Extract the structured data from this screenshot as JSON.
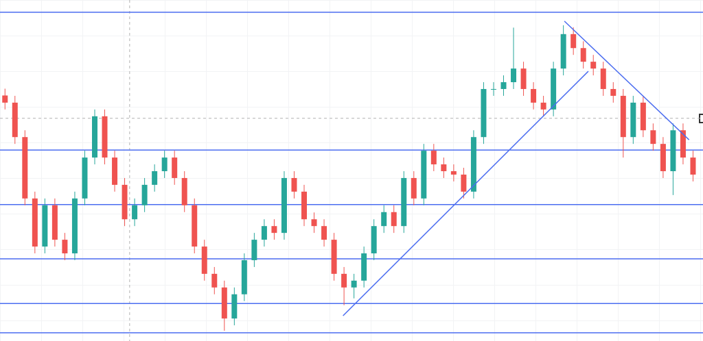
{
  "chart_data": {
    "type": "candlestick",
    "open": [
      72.0,
      69.9,
      59.8,
      41.8,
      27.7,
      39.8,
      29.7,
      25.7,
      41.8,
      53.8,
      65.9,
      53.8,
      45.8,
      35.7,
      39.8,
      45.8,
      49.8,
      53.8,
      47.8,
      39.8,
      27.7,
      19.7,
      15.7,
      6.6,
      13.7,
      23.7,
      29.7,
      33.7,
      31.7,
      47.8,
      43.8,
      35.7,
      33.7,
      29.7,
      19.7,
      15.7,
      17.7,
      25.7,
      33.7,
      37.8,
      33.7,
      47.8,
      41.8,
      55.8,
      51.8,
      49.8,
      48.8,
      43.8,
      59.8,
      73.9,
      73.9,
      75.9,
      79.9,
      73.9,
      69.9,
      67.9,
      79.9,
      90.0,
      85.9,
      81.9,
      79.9,
      73.9,
      71.9,
      59.8,
      69.9,
      61.8,
      57.8,
      49.8,
      61.8,
      53.8
    ],
    "high": [
      74.0,
      71.9,
      61.8,
      43.8,
      41.8,
      41.8,
      31.7,
      43.8,
      55.8,
      67.9,
      67.9,
      55.8,
      47.8,
      41.8,
      47.8,
      51.8,
      55.8,
      55.8,
      49.8,
      41.8,
      29.7,
      21.7,
      17.7,
      15.7,
      25.7,
      31.7,
      35.7,
      35.7,
      49.8,
      49.8,
      45.8,
      37.7,
      35.7,
      31.7,
      21.7,
      19.7,
      27.7,
      35.7,
      39.8,
      39.8,
      49.8,
      49.8,
      57.8,
      57.8,
      53.8,
      51.8,
      50.8,
      61.8,
      75.9,
      75.9,
      77.9,
      91.9,
      81.9,
      75.9,
      71.9,
      81.9,
      92.6,
      92.0,
      87.9,
      83.9,
      81.9,
      75.9,
      73.9,
      71.9,
      71.9,
      63.8,
      59.8,
      63.8,
      63.8,
      55.8
    ],
    "low": [
      67.9,
      57.8,
      39.8,
      25.7,
      25.7,
      27.7,
      23.7,
      23.7,
      39.8,
      51.8,
      51.8,
      43.8,
      33.7,
      33.7,
      37.8,
      43.8,
      47.8,
      45.8,
      37.8,
      25.7,
      17.7,
      13.7,
      3.0,
      4.6,
      11.7,
      21.7,
      27.7,
      29.7,
      29.7,
      41.8,
      33.7,
      31.7,
      27.7,
      17.7,
      10.5,
      12.5,
      15.7,
      23.7,
      31.7,
      31.7,
      31.7,
      39.8,
      39.8,
      49.8,
      47.8,
      46.8,
      41.8,
      41.8,
      57.8,
      71.9,
      71.9,
      73.9,
      71.9,
      67.9,
      65.9,
      65.9,
      77.9,
      83.9,
      79.9,
      77.9,
      71.9,
      69.9,
      53.8,
      57.8,
      59.8,
      55.8,
      47.8,
      42.8,
      51.8,
      46.8
    ],
    "close": [
      69.9,
      59.8,
      41.8,
      27.7,
      39.8,
      29.7,
      25.7,
      41.8,
      53.8,
      65.9,
      53.8,
      45.8,
      35.7,
      39.8,
      45.8,
      49.8,
      53.8,
      47.8,
      39.8,
      27.7,
      19.7,
      15.7,
      6.6,
      13.7,
      23.7,
      29.7,
      33.7,
      31.7,
      47.8,
      43.8,
      35.7,
      33.7,
      29.7,
      19.7,
      15.7,
      17.7,
      25.7,
      33.7,
      37.8,
      33.7,
      47.8,
      41.8,
      55.8,
      51.8,
      49.8,
      48.8,
      43.8,
      59.8,
      73.9,
      73.9,
      75.9,
      79.9,
      73.9,
      69.9,
      67.9,
      79.9,
      90.0,
      85.9,
      81.9,
      79.9,
      73.9,
      71.9,
      59.8,
      69.9,
      61.8,
      57.8,
      49.8,
      61.8,
      53.8,
      48.8
    ],
    "up_color": "#26a69a",
    "down_color": "#ef5350",
    "xlim": [
      -0.5,
      70
    ],
    "ylim": [
      0,
      100
    ],
    "levels": [
      96.4,
      56.0,
      40.0,
      24.1,
      11.0,
      2.4
    ],
    "line_color": "#4a6cf0",
    "trendlines": [
      {
        "x": [
          33.9,
          58.5
        ],
        "y": [
          7.4,
          79.1
        ]
      },
      {
        "x": [
          56.1,
          68.6
        ],
        "y": [
          93.8,
          59.0
        ]
      }
    ],
    "crosshair": {
      "x": 12.5,
      "y": 65.3
    }
  }
}
